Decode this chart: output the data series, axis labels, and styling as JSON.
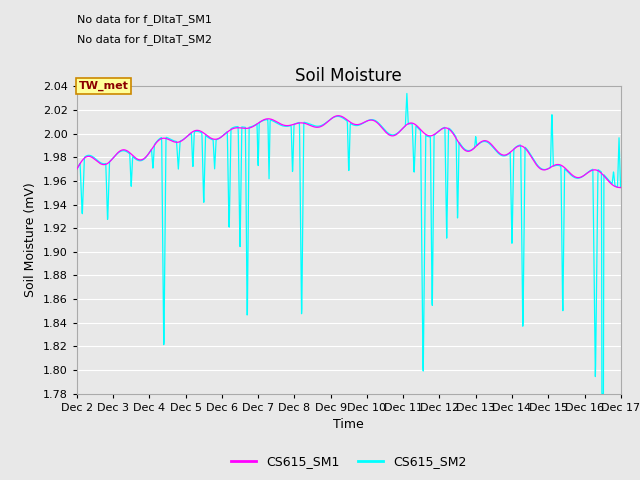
{
  "title": "Soil Moisture",
  "xlabel": "Time",
  "ylabel": "Soil Moisture (mV)",
  "ylim": [
    1.78,
    2.04
  ],
  "yticks": [
    1.78,
    1.8,
    1.82,
    1.84,
    1.86,
    1.88,
    1.9,
    1.92,
    1.94,
    1.96,
    1.98,
    2.0,
    2.02,
    2.04
  ],
  "xtick_labels": [
    "Dec 2",
    "Dec 3",
    "Dec 4",
    "Dec 5",
    "Dec 6",
    "Dec 7",
    "Dec 8",
    "Dec 9",
    "Dec 10",
    "Dec 11",
    "Dec 12",
    "Dec 13",
    "Dec 14",
    "Dec 15",
    "Dec 16",
    "Dec 17"
  ],
  "sm1_color": "#FF00FF",
  "sm2_color": "#00FFFF",
  "sm1_label": "CS615_SM1",
  "sm2_label": "CS615_SM2",
  "no_data_text1": "No data for f_DltaT_SM1",
  "no_data_text2": "No data for f_DltaT_SM2",
  "tw_met_label": "TW_met",
  "tw_met_bg": "#FFFF99",
  "tw_met_border": "#CC8800",
  "fig_bg": "#E8E8E8",
  "plot_bg": "#E8E8E8",
  "grid_color": "#FFFFFF",
  "title_fontsize": 12,
  "axis_label_fontsize": 9,
  "tick_fontsize": 8,
  "legend_fontsize": 9,
  "nodata_fontsize": 8,
  "twmet_fontsize": 8
}
